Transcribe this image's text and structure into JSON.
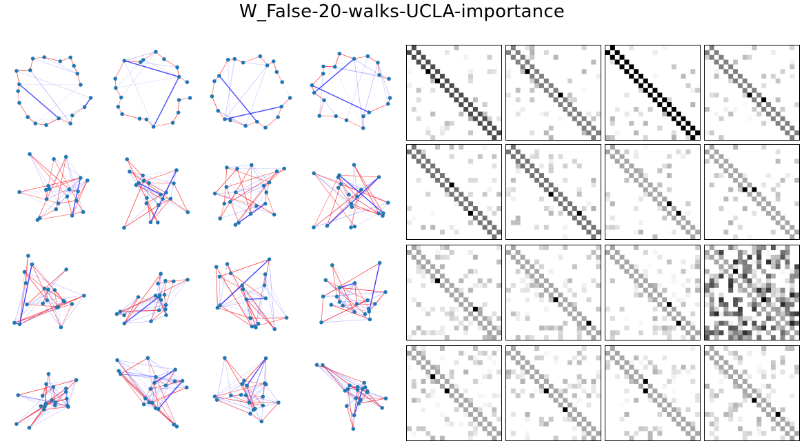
{
  "title": "W_False-20-walks-UCLA-importance",
  "colors": {
    "node": "#1f77b4",
    "walk_edge": "#ff2b2b",
    "weight_edge": "#2a2aff",
    "matrix_ink": "#000000"
  },
  "layout_grid": {
    "rows": 4,
    "graph_cols": 4,
    "matrix_cols": 4,
    "nodes_per_graph": 20
  }
}
